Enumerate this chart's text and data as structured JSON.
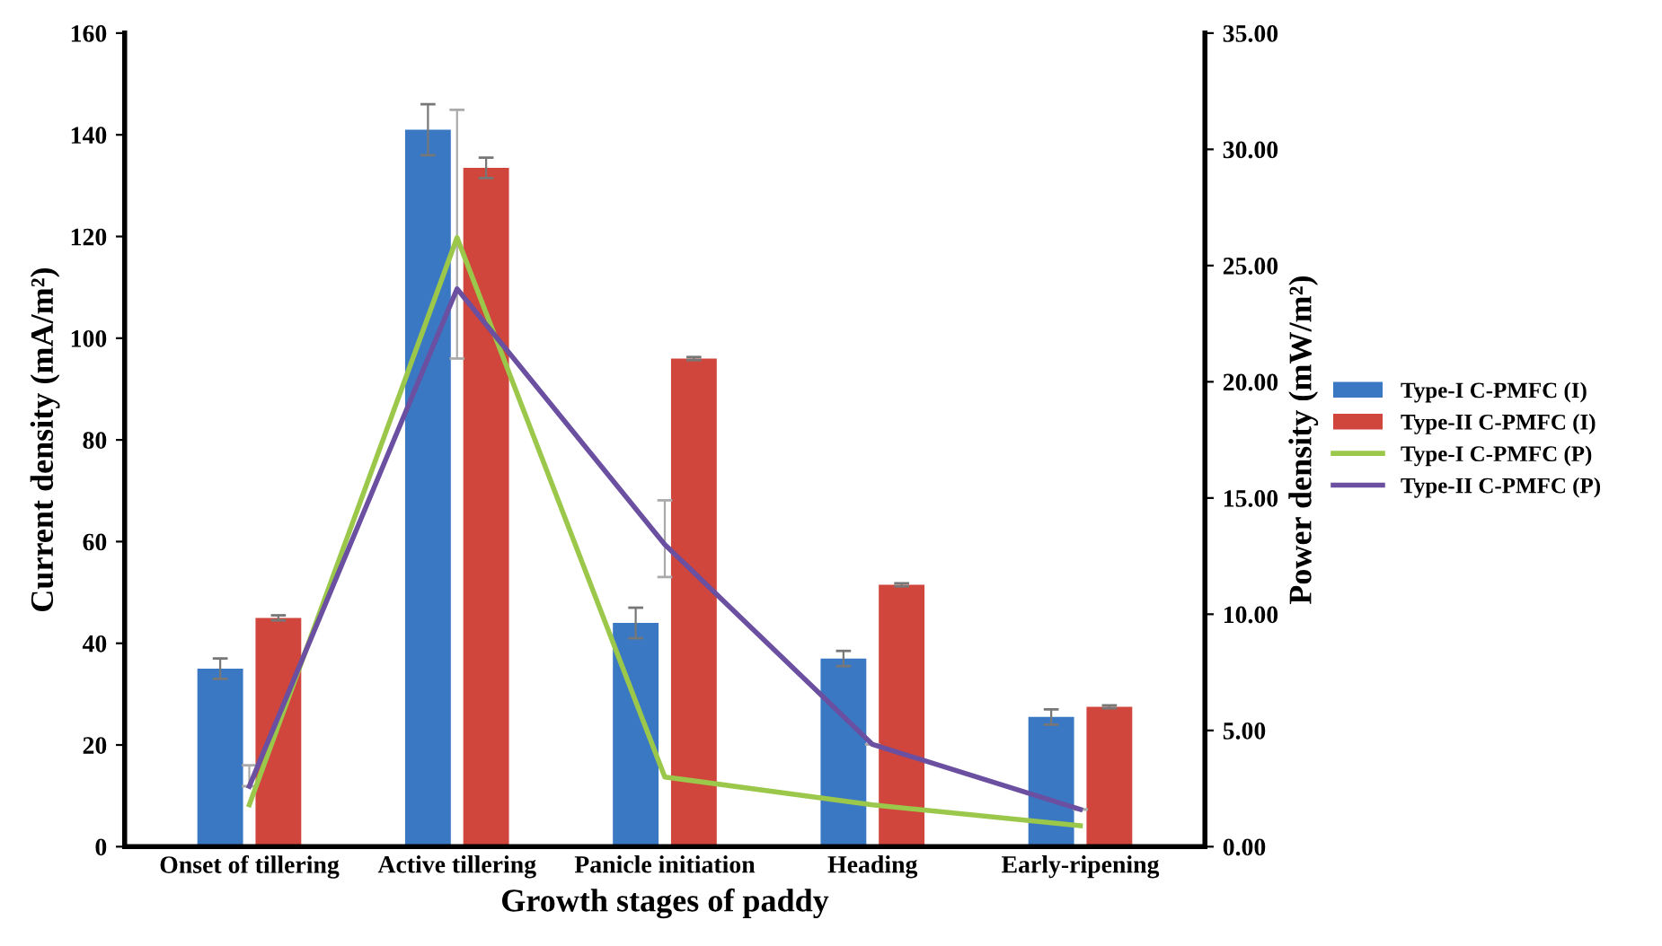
{
  "chart_data": {
    "type": "bar",
    "xlabel": "Growth stages of paddy",
    "ylabel": "Current density (mA/m²)",
    "y2label": "Power density (mW/m²)",
    "categories": [
      "Onset of tillering",
      "Active tillering",
      "Panicle initiation",
      "Heading",
      "Early-ripening"
    ],
    "series": [
      {
        "name": "Type-I C-PMFC (I)",
        "color": "#3a78c4",
        "values": [
          35,
          141,
          44,
          37,
          25.5
        ],
        "errors": [
          2,
          5,
          3,
          1.5,
          1.5
        ]
      },
      {
        "name": "Type-II C-PMFC (I)",
        "color": "#d0463c",
        "values": [
          45,
          133.5,
          96,
          51.5,
          27.5
        ],
        "errors": [
          0.5,
          2,
          0.3,
          0.3,
          0.3
        ]
      },
      {
        "name": "Type-I C-PMFC (P)",
        "type": "line",
        "axis": "y2",
        "color": "#9bc84a",
        "values": [
          1.8,
          26.2,
          3.0,
          1.8,
          0.9
        ]
      },
      {
        "name": "Type-II C-PMFC (P)",
        "type": "line",
        "axis": "y2",
        "color": "#6b4fa0",
        "values": [
          2.6,
          24.0,
          13.0,
          4.4,
          1.6
        ],
        "errors": [
          [
            2.6,
            3.5
          ],
          [
            21.0,
            31.7
          ],
          [
            11.6,
            14.9
          ],
          null,
          null
        ]
      }
    ],
    "ylim": [
      0,
      160
    ],
    "yticks": [
      0,
      20,
      40,
      60,
      80,
      100,
      120,
      140,
      160
    ],
    "y2lim": [
      0,
      35
    ],
    "y2ticks": [
      {
        "value": 0,
        "label": "0.00"
      },
      {
        "value": 5,
        "label": "5.00"
      },
      {
        "value": 10,
        "label": "10.00"
      },
      {
        "value": 15,
        "label": "15.00"
      },
      {
        "value": 20,
        "label": "20.00"
      },
      {
        "value": 25,
        "label": "25.00"
      },
      {
        "value": 30,
        "label": "30.00"
      },
      {
        "value": 35,
        "label": "35.00"
      }
    ],
    "grid": false,
    "legend": "right",
    "marker": "none",
    "line_style": "solid"
  }
}
